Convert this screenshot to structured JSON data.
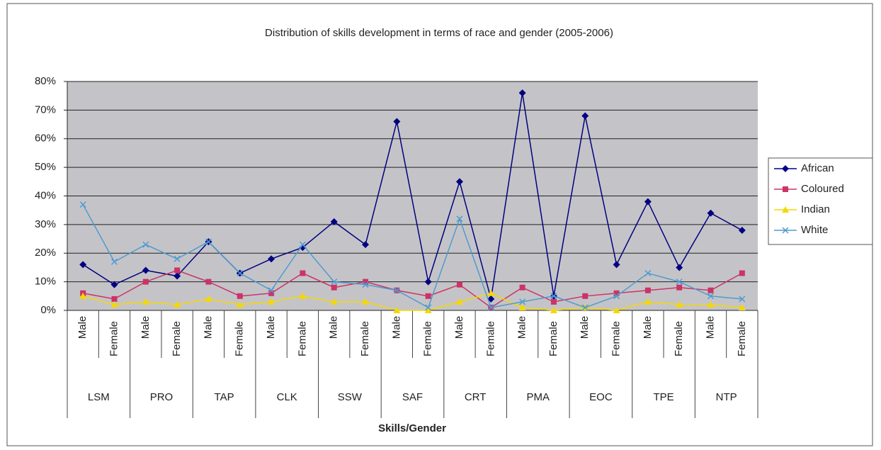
{
  "chart_data": {
    "type": "line",
    "title": "Distribution of skills development in terms of race and gender (2005-2006)",
    "x_label": "Skills/Gender",
    "categories": [
      "Male",
      "Female",
      "Male",
      "Female",
      "Male",
      "Female",
      "Male",
      "Female",
      "Male",
      "Female",
      "Male",
      "Female",
      "Male",
      "Female",
      "Male",
      "Female",
      "Male",
      "Female",
      "Male",
      "Female",
      "Male",
      "Female"
    ],
    "groups": [
      "LSM",
      "PRO",
      "TAP",
      "CLK",
      "SSW",
      "SAF",
      "CRT",
      "PMA",
      "EOC",
      "TPE",
      "NTP"
    ],
    "series": [
      {
        "name": "African",
        "color": "#000080",
        "marker": "diamond",
        "values": [
          16,
          9,
          14,
          12,
          24,
          13,
          18,
          22,
          31,
          23,
          66,
          10,
          45,
          4,
          76,
          5,
          68,
          16,
          38,
          15,
          34,
          28
        ]
      },
      {
        "name": "Coloured",
        "color": "#cc3366",
        "marker": "square",
        "values": [
          6,
          4,
          10,
          14,
          10,
          5,
          6,
          13,
          8,
          10,
          7,
          5,
          9,
          1,
          8,
          3,
          5,
          6,
          7,
          8,
          7,
          13
        ]
      },
      {
        "name": "Indian",
        "color": "#f5d800",
        "marker": "triangle",
        "values": [
          5,
          2,
          3,
          2,
          4,
          2,
          3,
          5,
          3,
          3,
          0,
          0,
          3,
          6,
          1,
          0,
          1,
          0,
          3,
          2,
          2,
          1
        ]
      },
      {
        "name": "White",
        "color": "#4f9bd0",
        "marker": "x",
        "values": [
          37,
          17,
          23,
          18,
          24,
          13,
          7,
          23,
          10,
          9,
          7,
          1,
          32,
          1,
          3,
          5,
          1,
          5,
          13,
          10,
          5,
          4
        ]
      }
    ],
    "ylim": [
      0,
      80
    ],
    "yticks": [
      {
        "value": 0,
        "label": "0%"
      },
      {
        "value": 10,
        "label": "10%"
      },
      {
        "value": 20,
        "label": "20%"
      },
      {
        "value": 30,
        "label": "30%"
      },
      {
        "value": 40,
        "label": "40%"
      },
      {
        "value": 50,
        "label": "50%"
      },
      {
        "value": 60,
        "label": "60%"
      },
      {
        "value": 70,
        "label": "70%"
      },
      {
        "value": 80,
        "label": "80%"
      }
    ],
    "grid": true,
    "legend": "right"
  }
}
